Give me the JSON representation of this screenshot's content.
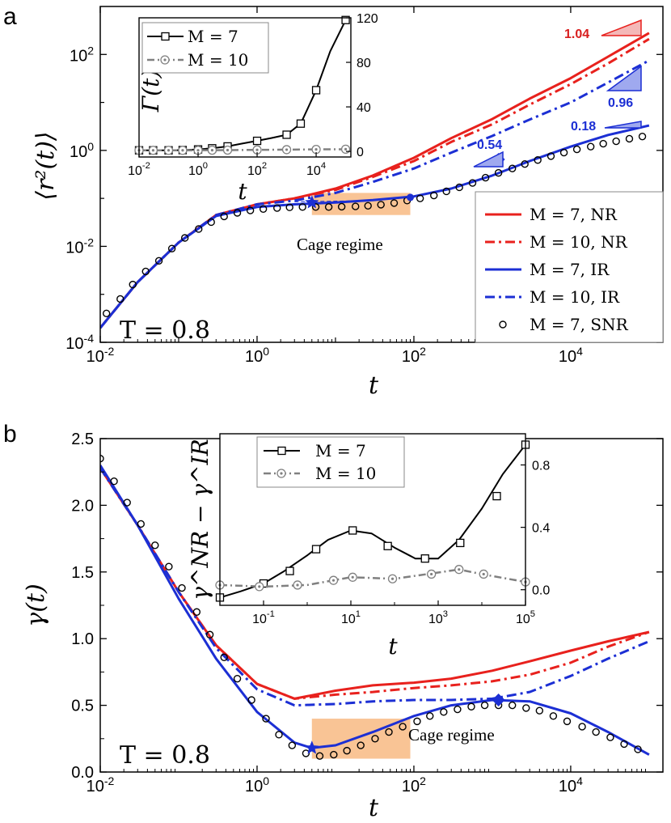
{
  "colors": {
    "red": "#e8211d",
    "blue": "#1c2fd4",
    "black": "#000000",
    "gray": "#808080",
    "cage": "#f9c495"
  },
  "chart_data": [
    {
      "panel": "a",
      "type": "line",
      "xscale": "log",
      "yscale": "log",
      "xlim": [
        0.01,
        150000
      ],
      "ylim": [
        0.0001,
        1000
      ],
      "xlabel": "t",
      "ylabel": "⟨r²(t)⟩",
      "xticks": [
        {
          "v": 0.01,
          "m": "10",
          "e": "-2"
        },
        {
          "v": 1,
          "m": "10",
          "e": "0"
        },
        {
          "v": 100,
          "m": "10",
          "e": "2"
        },
        {
          "v": 10000,
          "m": "10",
          "e": "4"
        }
      ],
      "yticks": [
        {
          "v": 0.0001,
          "m": "10",
          "e": "-4"
        },
        {
          "v": 0.01,
          "m": "10",
          "e": "-2"
        },
        {
          "v": 1,
          "m": "10",
          "e": "0"
        },
        {
          "v": 100,
          "m": "10",
          "e": "2"
        }
      ],
      "series": [
        {
          "name": "M = 7, NR",
          "style": "red-solid",
          "x": [
            0.01,
            0.03,
            0.1,
            0.3,
            1,
            3,
            10,
            30,
            100,
            300,
            1000,
            3000,
            10000,
            30000,
            100000
          ],
          "y": [
            0.0002,
            0.0018,
            0.012,
            0.045,
            0.075,
            0.1,
            0.16,
            0.3,
            0.7,
            1.8,
            4.5,
            12,
            32,
            90,
            280
          ]
        },
        {
          "name": "M = 10, NR",
          "style": "red-dashdot",
          "x": [
            0.01,
            0.03,
            0.1,
            0.3,
            1,
            3,
            10,
            30,
            100,
            300,
            1000,
            3000,
            10000,
            30000,
            100000
          ],
          "y": [
            0.0002,
            0.0018,
            0.012,
            0.045,
            0.075,
            0.1,
            0.15,
            0.28,
            0.6,
            1.5,
            3.5,
            9,
            24,
            65,
            210
          ]
        },
        {
          "name": "M = 7, IR",
          "style": "blue-solid",
          "x": [
            0.01,
            0.03,
            0.1,
            0.3,
            1,
            3,
            10,
            30,
            100,
            300,
            1000,
            3000,
            10000,
            30000,
            100000
          ],
          "y": [
            0.0002,
            0.0018,
            0.012,
            0.043,
            0.066,
            0.075,
            0.082,
            0.092,
            0.11,
            0.16,
            0.3,
            0.6,
            1.2,
            2.1,
            3.3
          ]
        },
        {
          "name": "M = 10, IR",
          "style": "blue-dashdot",
          "x": [
            0.01,
            0.03,
            0.1,
            0.3,
            1,
            3,
            10,
            30,
            100,
            300,
            1000,
            3000,
            10000,
            30000,
            100000
          ],
          "y": [
            0.0002,
            0.0018,
            0.012,
            0.045,
            0.075,
            0.09,
            0.13,
            0.22,
            0.42,
            0.9,
            2.0,
            4.4,
            10,
            26,
            75
          ]
        },
        {
          "name": "M = 7, SNR",
          "style": "circles",
          "x": [
            0.012,
            0.018,
            0.026,
            0.038,
            0.056,
            0.082,
            0.12,
            0.18,
            0.26,
            0.38,
            0.56,
            0.82,
            1.2,
            1.8,
            2.6,
            3.8,
            5.6,
            8.2,
            12,
            18,
            26,
            38,
            56,
            82,
            120,
            180,
            260,
            380,
            560,
            820,
            1200,
            1800,
            2600,
            3800,
            5600,
            8200,
            12000,
            18000,
            26000,
            38000,
            56000,
            82000
          ],
          "y": [
            0.0004,
            0.0008,
            0.0016,
            0.003,
            0.005,
            0.009,
            0.015,
            0.023,
            0.032,
            0.042,
            0.05,
            0.056,
            0.06,
            0.063,
            0.065,
            0.066,
            0.066,
            0.066,
            0.067,
            0.068,
            0.07,
            0.074,
            0.08,
            0.09,
            0.1,
            0.115,
            0.14,
            0.17,
            0.21,
            0.27,
            0.34,
            0.42,
            0.52,
            0.63,
            0.76,
            0.9,
            1.05,
            1.2,
            1.38,
            1.55,
            1.75,
            1.95
          ]
        }
      ],
      "markers": [
        {
          "shape": "star",
          "x": 5,
          "y": 0.082
        },
        {
          "shape": "circle",
          "x": 90,
          "y": 0.105
        },
        {
          "shape": "diamond",
          "x": 1200,
          "y": 0.65
        }
      ],
      "cage_region": {
        "x": [
          5,
          90
        ],
        "y": [
          0.045,
          0.13
        ]
      },
      "cage_label": "Cage regime",
      "temperature_label": "T = 0.8",
      "slope_labels": [
        "1.04",
        "0.96",
        "0.18",
        "0.54"
      ],
      "legend": {
        "placement": "bottom-right",
        "entries": [
          {
            "label": "M = 7, NR",
            "style": "red-solid"
          },
          {
            "label": "M = 10, NR",
            "style": "red-dashdot"
          },
          {
            "label": "M = 7, IR",
            "style": "blue-solid"
          },
          {
            "label": "M = 10, IR",
            "style": "blue-dashdot"
          },
          {
            "label": "M = 7, SNR",
            "style": "circles"
          }
        ]
      },
      "inset": {
        "xscale": "log",
        "yscale": "linear",
        "xlim": [
          0.01,
          150000
        ],
        "ylim": [
          -5,
          120
        ],
        "xlabel": "t",
        "ylabel": "Γ(t)",
        "xticks": [
          {
            "v": 0.01,
            "m": "10",
            "e": "-2"
          },
          {
            "v": 1,
            "m": "10",
            "e": "0"
          },
          {
            "v": 100,
            "m": "10",
            "e": "2"
          },
          {
            "v": 10000,
            "m": "10",
            "e": "4"
          }
        ],
        "yticks": [
          0,
          40,
          80,
          120
        ],
        "series": [
          {
            "name": "M = 7",
            "style": "black-square",
            "x": [
              0.01,
              0.03,
              0.1,
              0.3,
              1,
              3,
              10,
              30,
              100,
              300,
              1000,
              3000,
              10000,
              30000,
              100000
            ],
            "y": [
              1,
              1,
              1,
              1.2,
              1.8,
              2.8,
              4.5,
              7,
              9.5,
              12,
              15,
              25,
              55,
              90,
              118
            ],
            "markers_x": [
              0.01,
              0.03,
              0.1,
              0.3,
              1,
              3,
              10,
              100,
              1000,
              3000,
              10000,
              100000
            ],
            "markers_y": [
              1,
              1,
              1,
              1.2,
              1.8,
              2.8,
              4.5,
              9.5,
              15,
              25,
              55,
              118
            ]
          },
          {
            "name": "M = 10",
            "style": "gray-circle",
            "x": [
              0.01,
              0.1,
              1,
              10,
              100,
              1000,
              10000,
              100000
            ],
            "y": [
              1,
              1,
              1,
              1.2,
              1.4,
              1.6,
              1.8,
              2.0
            ],
            "markers_x": [
              0.01,
              0.03,
              0.1,
              0.3,
              1,
              3,
              10,
              100,
              1000,
              10000,
              100000
            ],
            "markers_y": [
              1,
              1,
              1,
              1,
              1,
              1.1,
              1.2,
              1.4,
              1.6,
              1.8,
              2.0
            ]
          }
        ],
        "legend": {
          "placement": "top-left",
          "entries": [
            {
              "label": "M = 7",
              "style": "black-square"
            },
            {
              "label": "M = 10",
              "style": "gray-circle"
            }
          ]
        }
      }
    },
    {
      "panel": "b",
      "type": "line",
      "xscale": "log",
      "yscale": "linear",
      "xlim": [
        0.01,
        150000
      ],
      "ylim": [
        0,
        2.5
      ],
      "xlabel": "t",
      "ylabel": "γ(t)",
      "xticks": [
        {
          "v": 0.01,
          "m": "10",
          "e": "-2"
        },
        {
          "v": 1,
          "m": "10",
          "e": "0"
        },
        {
          "v": 100,
          "m": "10",
          "e": "2"
        },
        {
          "v": 10000,
          "m": "10",
          "e": "4"
        }
      ],
      "yticks": [
        {
          "v": 0,
          "label": "0.0"
        },
        {
          "v": 0.5,
          "label": "0.5"
        },
        {
          "v": 1,
          "label": "1.0"
        },
        {
          "v": 1.5,
          "label": "1.5"
        },
        {
          "v": 2,
          "label": "2.0"
        },
        {
          "v": 2.5,
          "label": "2.5"
        }
      ],
      "series": [
        {
          "name": "M = 7, NR",
          "style": "red-solid",
          "x": [
            0.01,
            0.03,
            0.1,
            0.3,
            1,
            3,
            10,
            30,
            100,
            300,
            1000,
            3000,
            10000,
            30000,
            100000
          ],
          "y": [
            2.28,
            1.85,
            1.35,
            0.95,
            0.66,
            0.55,
            0.61,
            0.65,
            0.67,
            0.7,
            0.76,
            0.83,
            0.91,
            0.98,
            1.05
          ]
        },
        {
          "name": "M = 10, NR",
          "style": "red-dashdot",
          "x": [
            0.01,
            0.03,
            0.1,
            0.3,
            1,
            3,
            10,
            30,
            100,
            300,
            1000,
            3000,
            10000,
            30000,
            100000
          ],
          "y": [
            2.28,
            1.85,
            1.35,
            0.95,
            0.66,
            0.55,
            0.58,
            0.6,
            0.63,
            0.65,
            0.68,
            0.73,
            0.82,
            0.94,
            1.05
          ]
        },
        {
          "name": "M = 7, IR",
          "style": "blue-solid",
          "x": [
            0.01,
            0.03,
            0.1,
            0.3,
            1,
            3,
            5,
            10,
            30,
            100,
            300,
            1000,
            3000,
            10000,
            30000,
            100000
          ],
          "y": [
            2.3,
            1.85,
            1.3,
            0.85,
            0.45,
            0.22,
            0.18,
            0.2,
            0.3,
            0.42,
            0.5,
            0.54,
            0.53,
            0.44,
            0.3,
            0.13
          ]
        },
        {
          "name": "M = 10, IR",
          "style": "blue-dashdot",
          "x": [
            0.01,
            0.03,
            0.1,
            0.3,
            1,
            3,
            10,
            30,
            100,
            300,
            1000,
            3000,
            10000,
            30000,
            100000
          ],
          "y": [
            2.28,
            1.85,
            1.35,
            0.93,
            0.62,
            0.5,
            0.51,
            0.53,
            0.54,
            0.54,
            0.55,
            0.6,
            0.72,
            0.85,
            0.98
          ]
        },
        {
          "name": "M = 7, SNR",
          "style": "circles",
          "x": [
            0.01,
            0.015,
            0.022,
            0.033,
            0.05,
            0.075,
            0.11,
            0.17,
            0.25,
            0.38,
            0.56,
            0.85,
            1.3,
            1.9,
            2.8,
            4.2,
            6.3,
            9.5,
            14,
            21,
            32,
            48,
            72,
            110,
            160,
            240,
            360,
            540,
            800,
            1200,
            1800,
            2700,
            4000,
            6000,
            9000,
            14000,
            21000,
            32000,
            48000,
            72000
          ],
          "y": [
            2.35,
            2.18,
            2.02,
            1.86,
            1.7,
            1.54,
            1.38,
            1.2,
            1.03,
            0.86,
            0.7,
            0.54,
            0.4,
            0.28,
            0.2,
            0.14,
            0.12,
            0.13,
            0.16,
            0.2,
            0.25,
            0.3,
            0.34,
            0.38,
            0.42,
            0.45,
            0.47,
            0.49,
            0.5,
            0.5,
            0.5,
            0.48,
            0.46,
            0.42,
            0.38,
            0.34,
            0.3,
            0.26,
            0.21,
            0.17
          ]
        }
      ],
      "markers": [
        {
          "shape": "star",
          "x": 5,
          "y": 0.18
        },
        {
          "shape": "diamond",
          "x": 1200,
          "y": 0.54
        }
      ],
      "cage_region": {
        "x": [
          5,
          90
        ],
        "y": [
          0.1,
          0.4
        ]
      },
      "cage_label": "Cage regime",
      "temperature_label": "T = 0.8",
      "inset": {
        "xscale": "log",
        "yscale": "linear",
        "xlim": [
          0.01,
          100000
        ],
        "ylim": [
          -0.1,
          1.0
        ],
        "xlabel": "t",
        "ylabel": "γ^NR − γ^IR",
        "xticks": [
          {
            "v": 0.1,
            "m": "10",
            "e": "-1"
          },
          {
            "v": 10,
            "m": "10",
            "e": "1"
          },
          {
            "v": 1000,
            "m": "10",
            "e": "3"
          },
          {
            "v": 100000,
            "m": "10",
            "e": "5"
          }
        ],
        "yticks": [
          {
            "v": 0,
            "label": "0.0"
          },
          {
            "v": 0.4,
            "label": "0.4"
          },
          {
            "v": 0.8,
            "label": "0.8"
          }
        ],
        "series": [
          {
            "name": "M = 7",
            "style": "black-square",
            "x": [
              0.01,
              0.03,
              0.1,
              0.3,
              1,
              3,
              10,
              30,
              100,
              300,
              1000,
              3000,
              10000,
              30000,
              100000
            ],
            "y": [
              -0.05,
              -0.01,
              0.04,
              0.12,
              0.22,
              0.32,
              0.38,
              0.36,
              0.27,
              0.2,
              0.2,
              0.32,
              0.52,
              0.74,
              0.93
            ],
            "markers_x": [
              0.01,
              0.1,
              0.4,
              1.6,
              11,
              70,
              500,
              3200,
              22000,
              100000
            ],
            "markers_y": [
              -0.05,
              0.04,
              0.12,
              0.26,
              0.38,
              0.28,
              0.2,
              0.3,
              0.6,
              0.93
            ]
          },
          {
            "name": "M = 10",
            "style": "gray-circle",
            "x": [
              0.01,
              0.1,
              1,
              10,
              100,
              1000,
              3000,
              10000,
              100000
            ],
            "y": [
              0.03,
              0.02,
              0.03,
              0.08,
              0.07,
              0.11,
              0.13,
              0.1,
              0.05
            ],
            "markers_x": [
              0.01,
              0.08,
              0.6,
              4,
              11,
              90,
              700,
              3000,
              11000,
              100000
            ],
            "markers_y": [
              0.03,
              0.02,
              0.03,
              0.06,
              0.08,
              0.07,
              0.1,
              0.13,
              0.1,
              0.05
            ]
          }
        ],
        "legend": {
          "placement": "top",
          "entries": [
            {
              "label": "M = 7",
              "style": "black-square"
            },
            {
              "label": "M = 10",
              "style": "gray-circle"
            }
          ]
        }
      }
    }
  ]
}
